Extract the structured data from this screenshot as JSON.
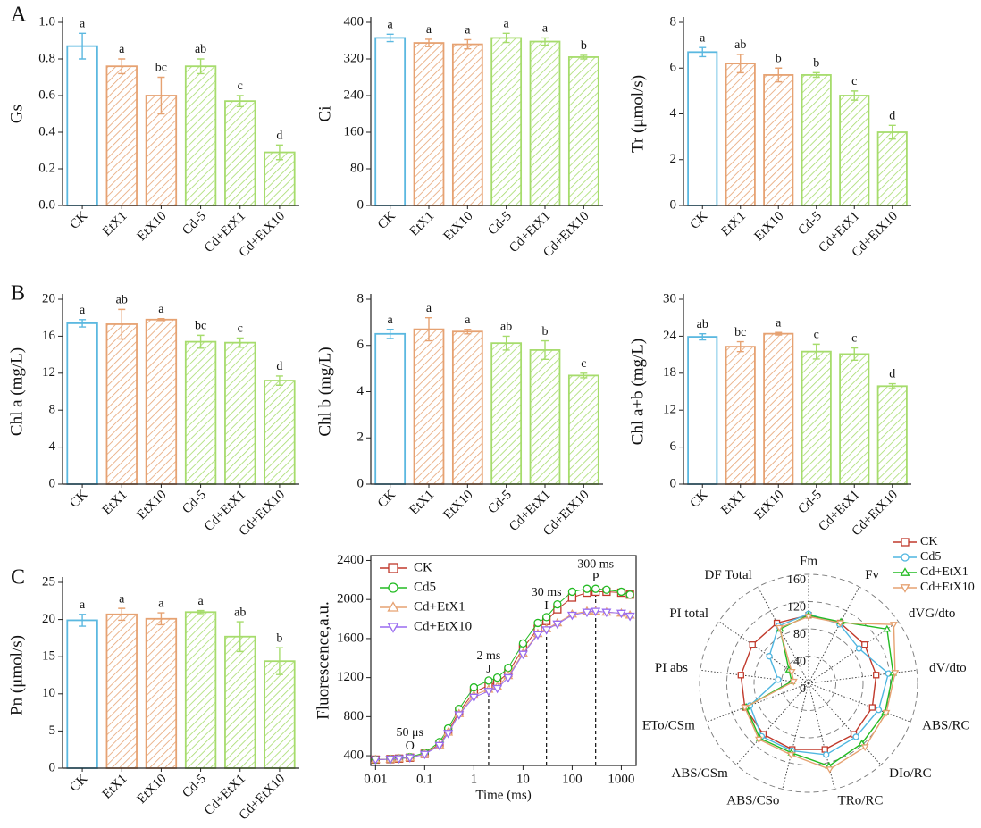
{
  "chart_data": [
    {
      "type": "bar",
      "panel": "A",
      "ylabel": "Gs",
      "categories": [
        "CK",
        "EtX1",
        "EtX10",
        "Cd-5",
        "Cd+EtX1",
        "Cd+EtX10"
      ],
      "values": [
        0.87,
        0.76,
        0.6,
        0.76,
        0.57,
        0.29
      ],
      "errors": [
        0.07,
        0.04,
        0.1,
        0.04,
        0.03,
        0.04
      ],
      "letters": [
        "a",
        "a",
        "bc",
        "ab",
        "c",
        "d"
      ],
      "colors": [
        "#5bb8e0",
        "#e6a272",
        "#e6a272",
        "#a6dc6c",
        "#a6dc6c",
        "#a6dc6c"
      ],
      "hatched": [
        false,
        true,
        true,
        true,
        true,
        true
      ],
      "ylim": [
        0,
        1.0
      ],
      "yticks": [
        {
          "value": 0,
          "label": "0.0"
        },
        0.2,
        0.4,
        0.6,
        0.8,
        {
          "value": 1,
          "label": "1.0"
        }
      ]
    },
    {
      "type": "bar",
      "ylabel": "Ci",
      "categories": [
        "CK",
        "EtX1",
        "EtX10",
        "Cd-5",
        "Cd+EtX1",
        "Cd+EtX10"
      ],
      "values": [
        366,
        355,
        352,
        366,
        358,
        324
      ],
      "errors": [
        8,
        8,
        10,
        10,
        8,
        4
      ],
      "letters": [
        "a",
        "a",
        "a",
        "a",
        "a",
        "b"
      ],
      "colors": [
        "#5bb8e0",
        "#e6a272",
        "#e6a272",
        "#a6dc6c",
        "#a6dc6c",
        "#a6dc6c"
      ],
      "hatched": [
        false,
        true,
        true,
        true,
        true,
        true
      ],
      "ylim": [
        0,
        400
      ],
      "yticks": [
        0,
        80,
        160,
        240,
        320,
        400
      ]
    },
    {
      "type": "bar",
      "ylabel": "Tr (μmol/s)",
      "categories": [
        "CK",
        "EtX1",
        "EtX10",
        "Cd-5",
        "Cd+EtX1",
        "Cd+EtX10"
      ],
      "values": [
        6.7,
        6.2,
        5.7,
        5.7,
        4.8,
        3.2
      ],
      "errors": [
        0.2,
        0.4,
        0.3,
        0.1,
        0.2,
        0.3
      ],
      "letters": [
        "a",
        "ab",
        "b",
        "b",
        "c",
        "d"
      ],
      "colors": [
        "#5bb8e0",
        "#e6a272",
        "#e6a272",
        "#a6dc6c",
        "#a6dc6c",
        "#a6dc6c"
      ],
      "hatched": [
        false,
        true,
        true,
        true,
        true,
        true
      ],
      "ylim": [
        0,
        8
      ],
      "yticks": [
        0,
        2,
        4,
        6,
        8
      ]
    },
    {
      "type": "bar",
      "panel": "B",
      "ylabel": "Chl a (mg/L)",
      "categories": [
        "CK",
        "EtX1",
        "EtX10",
        "Cd-5",
        "Cd+EtX1",
        "Cd+EtX10"
      ],
      "values": [
        17.4,
        17.3,
        17.8,
        15.4,
        15.3,
        11.2
      ],
      "errors": [
        0.4,
        1.6,
        0.1,
        0.7,
        0.5,
        0.5
      ],
      "letters": [
        "a",
        "ab",
        "a",
        "bc",
        "c",
        "d"
      ],
      "colors": [
        "#5bb8e0",
        "#e6a272",
        "#e6a272",
        "#a6dc6c",
        "#a6dc6c",
        "#a6dc6c"
      ],
      "hatched": [
        false,
        true,
        true,
        true,
        true,
        true
      ],
      "ylim": [
        0,
        20
      ],
      "yticks": [
        0,
        4,
        8,
        12,
        16,
        20
      ]
    },
    {
      "type": "bar",
      "ylabel": "Chl b (mg/L)",
      "categories": [
        "CK",
        "EtX1",
        "EtX10",
        "Cd-5",
        "Cd+EtX1",
        "Cd+EtX10"
      ],
      "values": [
        6.5,
        6.7,
        6.6,
        6.1,
        5.8,
        4.7
      ],
      "errors": [
        0.2,
        0.5,
        0.1,
        0.3,
        0.4,
        0.1
      ],
      "letters": [
        "a",
        "a",
        "a",
        "ab",
        "b",
        "c"
      ],
      "colors": [
        "#5bb8e0",
        "#e6a272",
        "#e6a272",
        "#a6dc6c",
        "#a6dc6c",
        "#a6dc6c"
      ],
      "hatched": [
        false,
        true,
        true,
        true,
        true,
        true
      ],
      "ylim": [
        0,
        8
      ],
      "yticks": [
        0,
        2,
        4,
        6,
        8
      ]
    },
    {
      "type": "bar",
      "ylabel": "Chl a+b (mg/L)",
      "categories": [
        "CK",
        "EtX1",
        "EtX10",
        "Cd-5",
        "Cd+EtX1",
        "Cd+EtX10"
      ],
      "values": [
        23.9,
        22.3,
        24.4,
        21.5,
        21.1,
        15.9
      ],
      "errors": [
        0.5,
        0.8,
        0.2,
        1.2,
        1.0,
        0.4
      ],
      "letters": [
        "ab",
        "bc",
        "a",
        "c",
        "c",
        "d"
      ],
      "colors": [
        "#5bb8e0",
        "#e6a272",
        "#e6a272",
        "#a6dc6c",
        "#a6dc6c",
        "#a6dc6c"
      ],
      "hatched": [
        false,
        true,
        true,
        true,
        true,
        true
      ],
      "ylim": [
        0,
        30
      ],
      "yticks": [
        0,
        6,
        12,
        18,
        24,
        30
      ]
    },
    {
      "type": "bar",
      "panel": "C",
      "ylabel": "Pn (μmol/s)",
      "categories": [
        "CK",
        "EtX1",
        "EtX10",
        "Cd-5",
        "Cd+EtX1",
        "Cd+EtX10"
      ],
      "values": [
        19.9,
        20.7,
        20.1,
        21.0,
        17.7,
        14.4
      ],
      "errors": [
        0.8,
        0.8,
        0.8,
        0.2,
        2.0,
        1.8
      ],
      "letters": [
        "a",
        "a",
        "a",
        "a",
        "ab",
        "b"
      ],
      "colors": [
        "#5bb8e0",
        "#e6a272",
        "#e6a272",
        "#a6dc6c",
        "#a6dc6c",
        "#a6dc6c"
      ],
      "hatched": [
        false,
        true,
        true,
        true,
        true,
        true
      ],
      "ylim": [
        0,
        25
      ],
      "yticks": [
        0,
        5,
        10,
        15,
        20,
        25
      ]
    },
    {
      "type": "line",
      "xlabel": "Time (ms)",
      "ylabel": "Fluorescence,a.u.",
      "log_x": true,
      "x": [
        0.01,
        0.02,
        0.03,
        0.05,
        0.1,
        0.2,
        0.3,
        0.5,
        1,
        2,
        3,
        5,
        10,
        20,
        30,
        50,
        100,
        200,
        300,
        500,
        1000,
        1500
      ],
      "series": [
        {
          "name": "CK",
          "color": "#c0392b",
          "marker": "square",
          "values": [
            360,
            365,
            370,
            380,
            420,
            520,
            650,
            850,
            1050,
            1120,
            1150,
            1250,
            1500,
            1700,
            1780,
            1900,
            2020,
            2070,
            2080,
            2080,
            2070,
            2050
          ]
        },
        {
          "name": "Cd5",
          "color": "#22bb22",
          "marker": "circle",
          "values": [
            360,
            365,
            372,
            385,
            430,
            540,
            680,
            880,
            1100,
            1170,
            1200,
            1300,
            1550,
            1760,
            1820,
            1950,
            2080,
            2110,
            2110,
            2100,
            2080,
            2050
          ]
        },
        {
          "name": "Cd+EtX1",
          "color": "#e6a272",
          "marker": "triangle",
          "values": [
            360,
            365,
            370,
            380,
            420,
            510,
            640,
            830,
            1020,
            1080,
            1110,
            1220,
            1450,
            1650,
            1700,
            1760,
            1850,
            1880,
            1880,
            1870,
            1860,
            1840
          ]
        },
        {
          "name": "Cd+EtX10",
          "color": "#9a6cf0",
          "marker": "triangle-down",
          "values": [
            360,
            364,
            370,
            380,
            415,
            505,
            630,
            820,
            1000,
            1060,
            1090,
            1200,
            1440,
            1640,
            1690,
            1750,
            1840,
            1870,
            1880,
            1870,
            1860,
            1830
          ]
        }
      ],
      "annotations": [
        {
          "x": 0.05,
          "time": "50 μs",
          "phase": "O",
          "dashed": false
        },
        {
          "x": 2,
          "time": "2 ms",
          "phase": "J",
          "dashed": true
        },
        {
          "x": 30,
          "time": "30 ms",
          "phase": "I",
          "dashed": true
        },
        {
          "x": 300,
          "time": "300 ms",
          "phase": "P",
          "dashed": true
        }
      ],
      "xlim": [
        0.008,
        2000
      ],
      "xticks": [
        0.01,
        0.1,
        1,
        10,
        100,
        1000
      ],
      "ylim": [
        300,
        2450
      ],
      "yticks": [
        400,
        800,
        1200,
        1600,
        2000,
        2400
      ]
    },
    {
      "type": "radar",
      "axes": [
        "Fm",
        "Fv",
        "dVG/dto",
        "dV/dto",
        "ABS/RC",
        "DIo/RC",
        "TRo/RC",
        "ABS/CSo",
        "ABS/CSm",
        "ETo/CSm",
        "PI abs",
        "PI total",
        "DF Total"
      ],
      "series": [
        {
          "name": "CK",
          "color": "#c0392b",
          "marker": "square",
          "values": [
            100,
            100,
            100,
            100,
            100,
            100,
            100,
            100,
            100,
            100,
            100,
            100,
            100
          ]
        },
        {
          "name": "Cd5",
          "color": "#4fb6e0",
          "marker": "circle",
          "values": [
            102,
            98,
            90,
            118,
            110,
            105,
            108,
            102,
            104,
            92,
            45,
            70,
            95
          ]
        },
        {
          "name": "Cd+EtX1",
          "color": "#22bb22",
          "marker": "triangle",
          "values": [
            100,
            102,
            140,
            125,
            120,
            118,
            125,
            105,
            108,
            98,
            25,
            35,
            90
          ]
        },
        {
          "name": "Cd+EtX10",
          "color": "#e6a272",
          "marker": "triangle-down",
          "values": [
            98,
            100,
            152,
            128,
            122,
            125,
            130,
            108,
            110,
            100,
            22,
            30,
            92
          ]
        }
      ],
      "rlim": [
        0,
        160
      ],
      "rticks": [
        0,
        40,
        80,
        120,
        160
      ]
    }
  ]
}
